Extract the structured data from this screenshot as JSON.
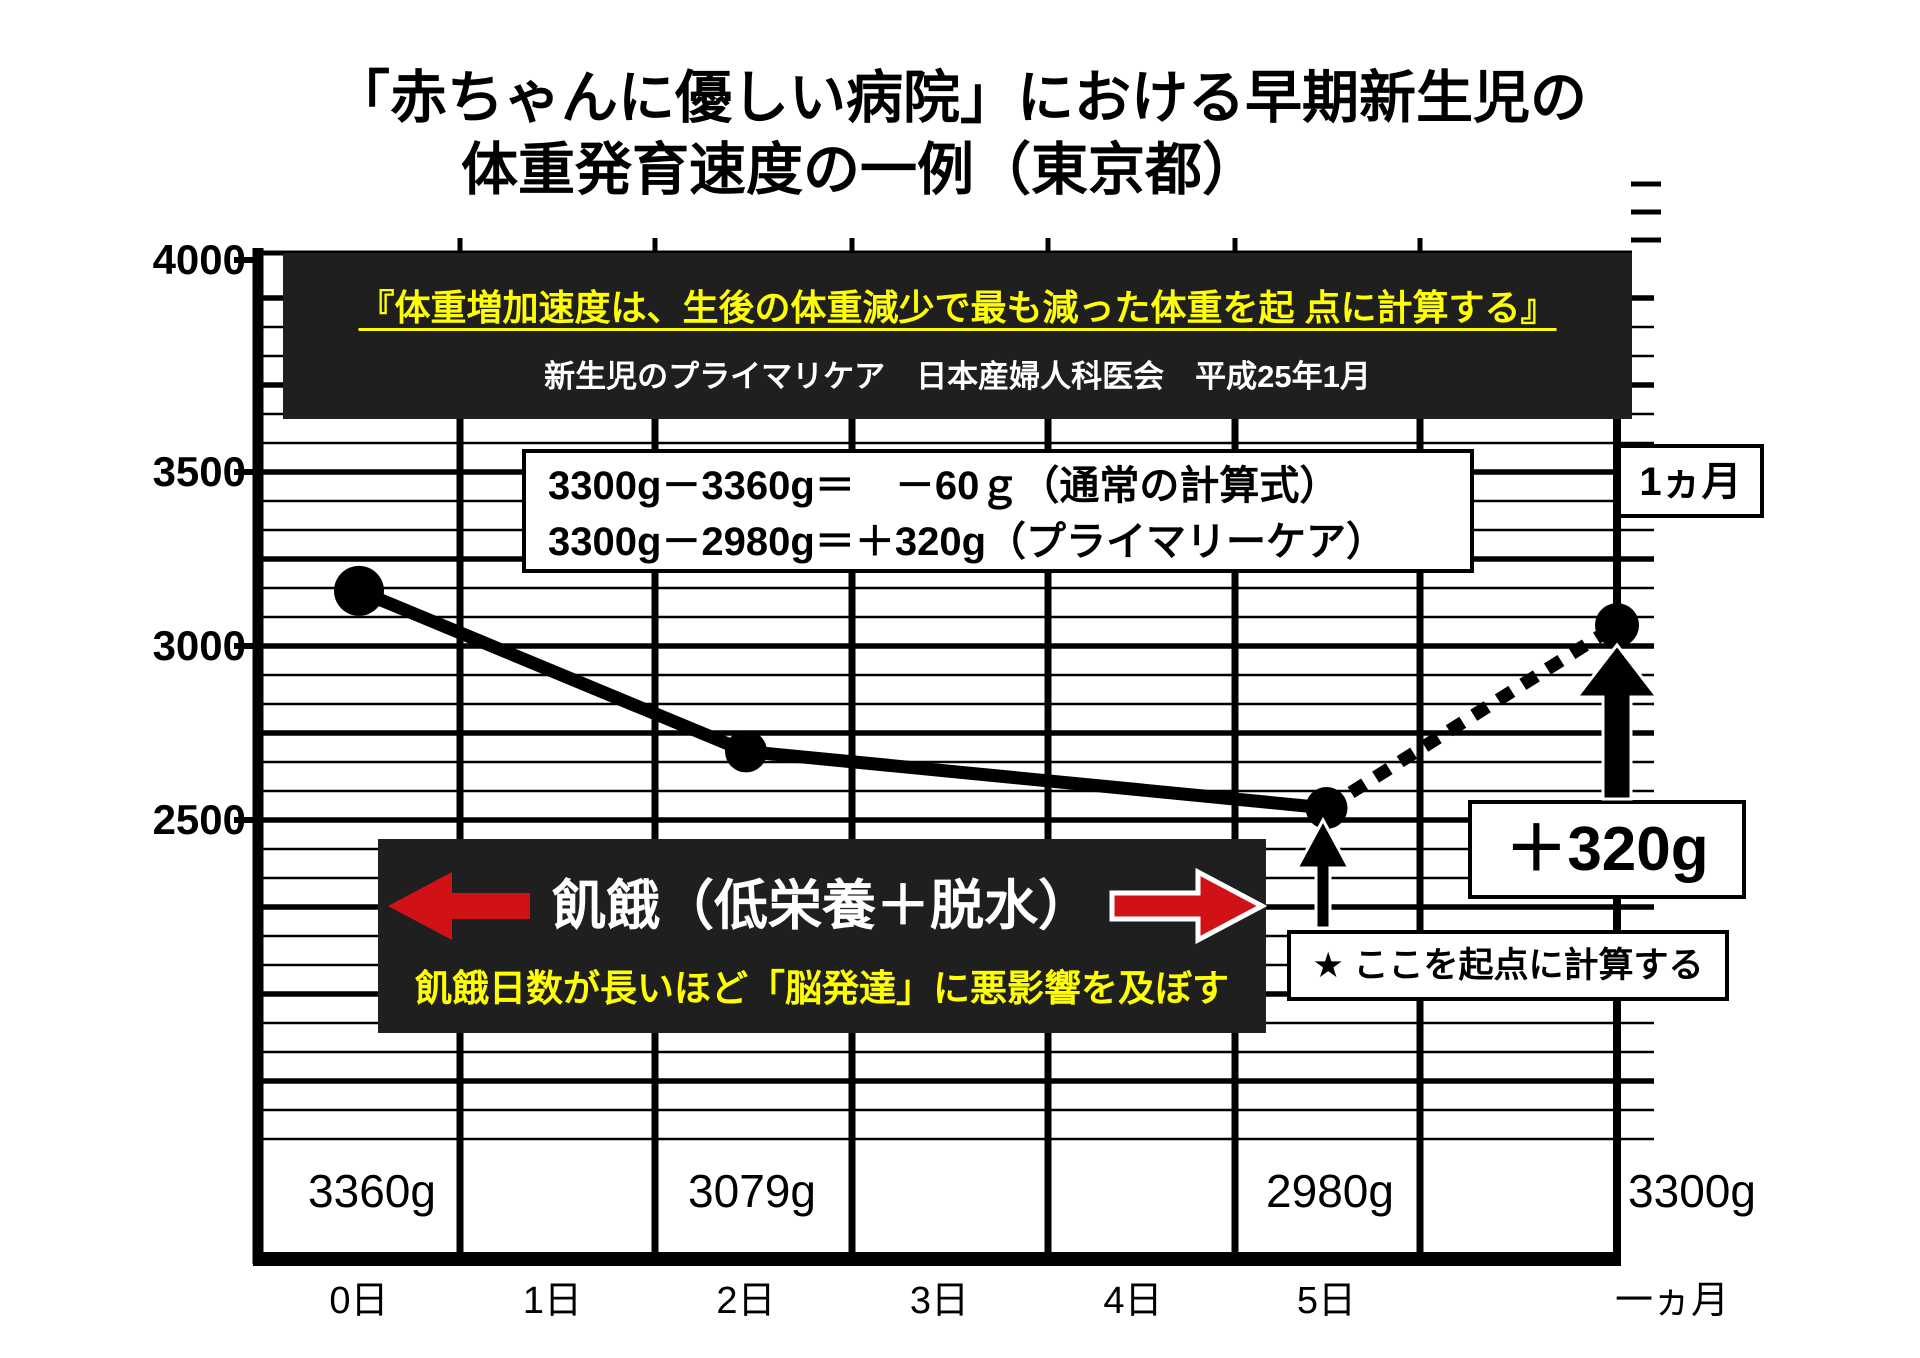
{
  "title": {
    "line1": "「赤ちゃんに優しい病院」における早期新生児の",
    "line2": "体重発育速度の一例（東京都）"
  },
  "quote_box": {
    "highlight": "『体重増加速度は、生後の体重減少で最も減った体重を起 点に計算する』",
    "source": "新生児のプライマリケア　日本産婦人科医会　平成25年1月"
  },
  "calc_box": {
    "line1": "3300g－3360g＝　－60ｇ（通常の計算式）",
    "line2": "3300g－2980g＝＋320g（プライマリーケア）"
  },
  "month_box": {
    "label": "1ヵ月"
  },
  "starvation_box": {
    "headline": "飢餓（低栄養＋脱水）",
    "subline": "飢餓日数が長いほど「脳発達」に悪影響を及ぼす"
  },
  "gain_box": {
    "label": "＋320g"
  },
  "origin_box": {
    "label": "★ ここを起点に計算する"
  },
  "y_axis": {
    "tick_labels": [
      "4000",
      "3500",
      "3000",
      "2500"
    ]
  },
  "x_axis": {
    "tick_labels": [
      "0日",
      "1日",
      "2日",
      "3日",
      "4日",
      "5日",
      "一ヵ月"
    ]
  },
  "weight_labels": [
    "3360g",
    "3079g",
    "2980g",
    "3300g"
  ],
  "colors": {
    "panel": "#1f1f1f",
    "yellow": "#ffff00",
    "red": "#d01217",
    "ink": "#000000",
    "paper": "#ffffff"
  },
  "chart_data": {
    "type": "line",
    "title": "「赤ちゃんに優しい病院」における早期新生児の体重発育速度の一例（東京都）",
    "x_categories": [
      "0日",
      "1日",
      "2日",
      "3日",
      "4日",
      "5日",
      "一ヵ月"
    ],
    "y_ticks": [
      4000,
      3500,
      3000,
      2500
    ],
    "ylim": [
      2300,
      4050
    ],
    "grid": true,
    "legend": false,
    "series": [
      {
        "style": "solid",
        "points": [
          {
            "x": "0日",
            "y": 3360
          },
          {
            "x": "2日",
            "y": 3079
          },
          {
            "x": "5日",
            "y": 2980
          }
        ]
      },
      {
        "style": "dotted",
        "points": [
          {
            "x": "5日",
            "y": 2980
          },
          {
            "x": "一ヵ月",
            "y": 3300
          }
        ]
      }
    ],
    "point_labels": [
      {
        "x": "0日",
        "label": "3360g"
      },
      {
        "x": "2日",
        "label": "3079g"
      },
      {
        "x": "5日",
        "label": "2980g"
      },
      {
        "x": "一ヵ月",
        "label": "3300g"
      }
    ],
    "annotations": [
      "『体重増加速度は、生後の体重減少で最も減った体重を起 点に計算する』",
      "新生児のプライマリケア　日本産婦人科医会　平成25年1月",
      "3300g－3360g＝　－60ｇ（通常の計算式）",
      "3300g－2980g＝＋320g（プライマリーケア）",
      "1ヵ月",
      "飢餓（低栄養＋脱水）",
      "飢餓日数が長いほど「脳発達」に悪影響を及ぼす",
      "＋320g",
      "★ ここを起点に計算する"
    ]
  }
}
